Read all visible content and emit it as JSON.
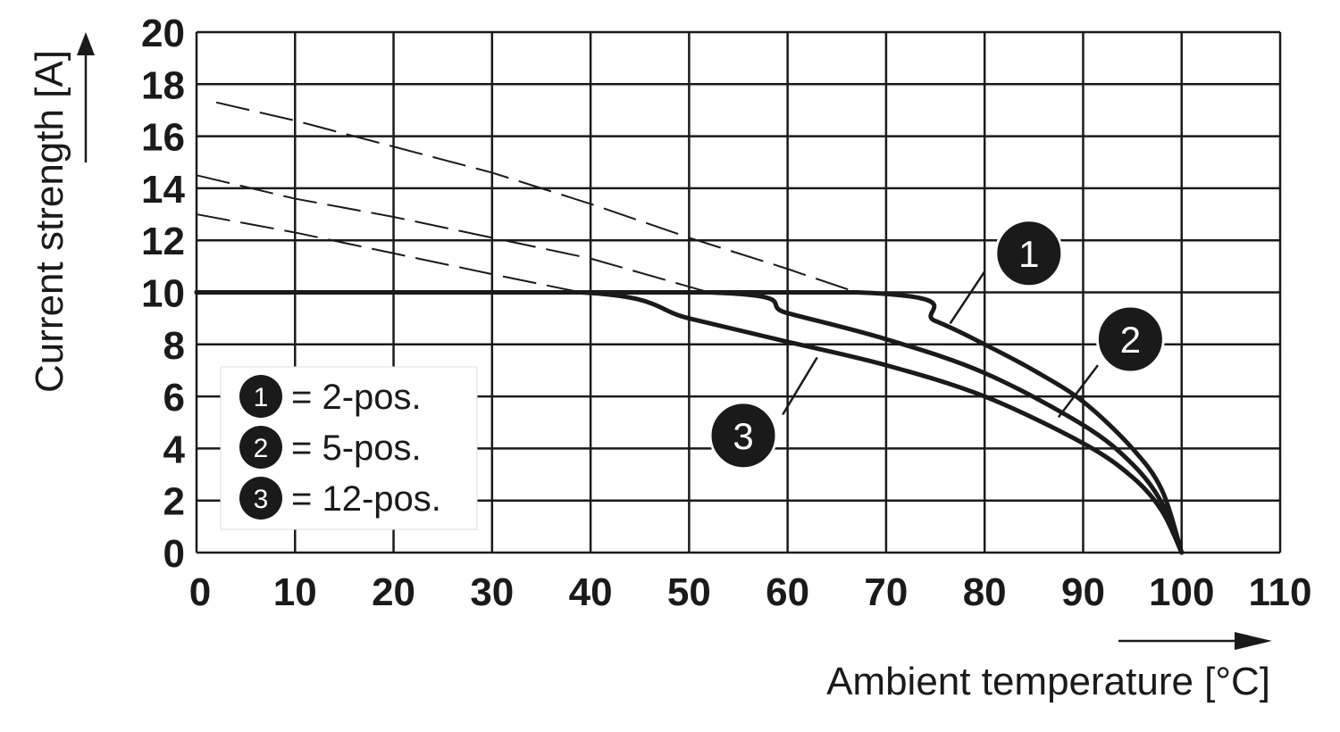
{
  "chart_data": {
    "type": "line",
    "xlabel": "Ambient temperature [°C]",
    "ylabel": "Current strength [A]",
    "xlim": [
      0,
      110
    ],
    "ylim": [
      0,
      20
    ],
    "x_ticks": [
      0,
      10,
      20,
      30,
      40,
      50,
      60,
      70,
      80,
      90,
      100,
      110
    ],
    "y_ticks": [
      0,
      2,
      4,
      6,
      8,
      10,
      12,
      14,
      16,
      18,
      20
    ],
    "grid": true,
    "series": [
      {
        "name": "2-pos.",
        "marker": "1",
        "x": [
          0,
          67,
          75,
          80,
          85,
          90,
          95,
          98,
          100
        ],
        "y": [
          10,
          10,
          8.9,
          8.0,
          7.0,
          5.8,
          4.0,
          2.4,
          0
        ],
        "dashed_x": [
          2,
          10,
          20,
          30,
          40,
          50,
          60,
          67
        ],
        "dashed_y": [
          17.3,
          16.6,
          15.6,
          14.6,
          13.4,
          12.1,
          10.9,
          10
        ]
      },
      {
        "name": "5-pos.",
        "marker": "2",
        "x": [
          0,
          52,
          60,
          70,
          80,
          90,
          95,
          98,
          100
        ],
        "y": [
          10,
          10,
          9.2,
          8.2,
          6.9,
          4.9,
          3.4,
          1.9,
          0
        ],
        "dashed_x": [
          0,
          10,
          20,
          30,
          40,
          52
        ],
        "dashed_y": [
          14.5,
          13.6,
          12.9,
          12.1,
          11.3,
          10
        ]
      },
      {
        "name": "12-pos.",
        "marker": "3",
        "x": [
          0,
          39,
          50,
          60,
          70,
          80,
          90,
          95,
          98,
          100
        ],
        "y": [
          10,
          10,
          9.0,
          8.1,
          7.2,
          6.0,
          4.2,
          2.9,
          1.6,
          0
        ],
        "dashed_x": [
          0,
          10,
          20,
          30,
          39
        ],
        "dashed_y": [
          13,
          12.3,
          11.5,
          10.7,
          10
        ]
      }
    ],
    "legend": {
      "position": "bottom-left",
      "entries": [
        {
          "num": "1",
          "text": "= 2-pos."
        },
        {
          "num": "2",
          "text": "= 5-pos."
        },
        {
          "num": "3",
          "text": "= 12-pos."
        }
      ]
    },
    "callouts": [
      {
        "num": "1",
        "label_at": [
          84.5,
          11.5
        ],
        "leader_from": [
          80,
          10.8
        ],
        "leader_to": [
          76.5,
          8.8
        ]
      },
      {
        "num": "2",
        "label_at": [
          94.8,
          8.2
        ],
        "leader_from": [
          91.5,
          7.2
        ],
        "leader_to": [
          87.5,
          5.2
        ]
      },
      {
        "num": "3",
        "label_at": [
          55.5,
          4.5
        ],
        "leader_from": [
          59.5,
          5.3
        ],
        "leader_to": [
          63,
          7.5
        ]
      }
    ]
  }
}
